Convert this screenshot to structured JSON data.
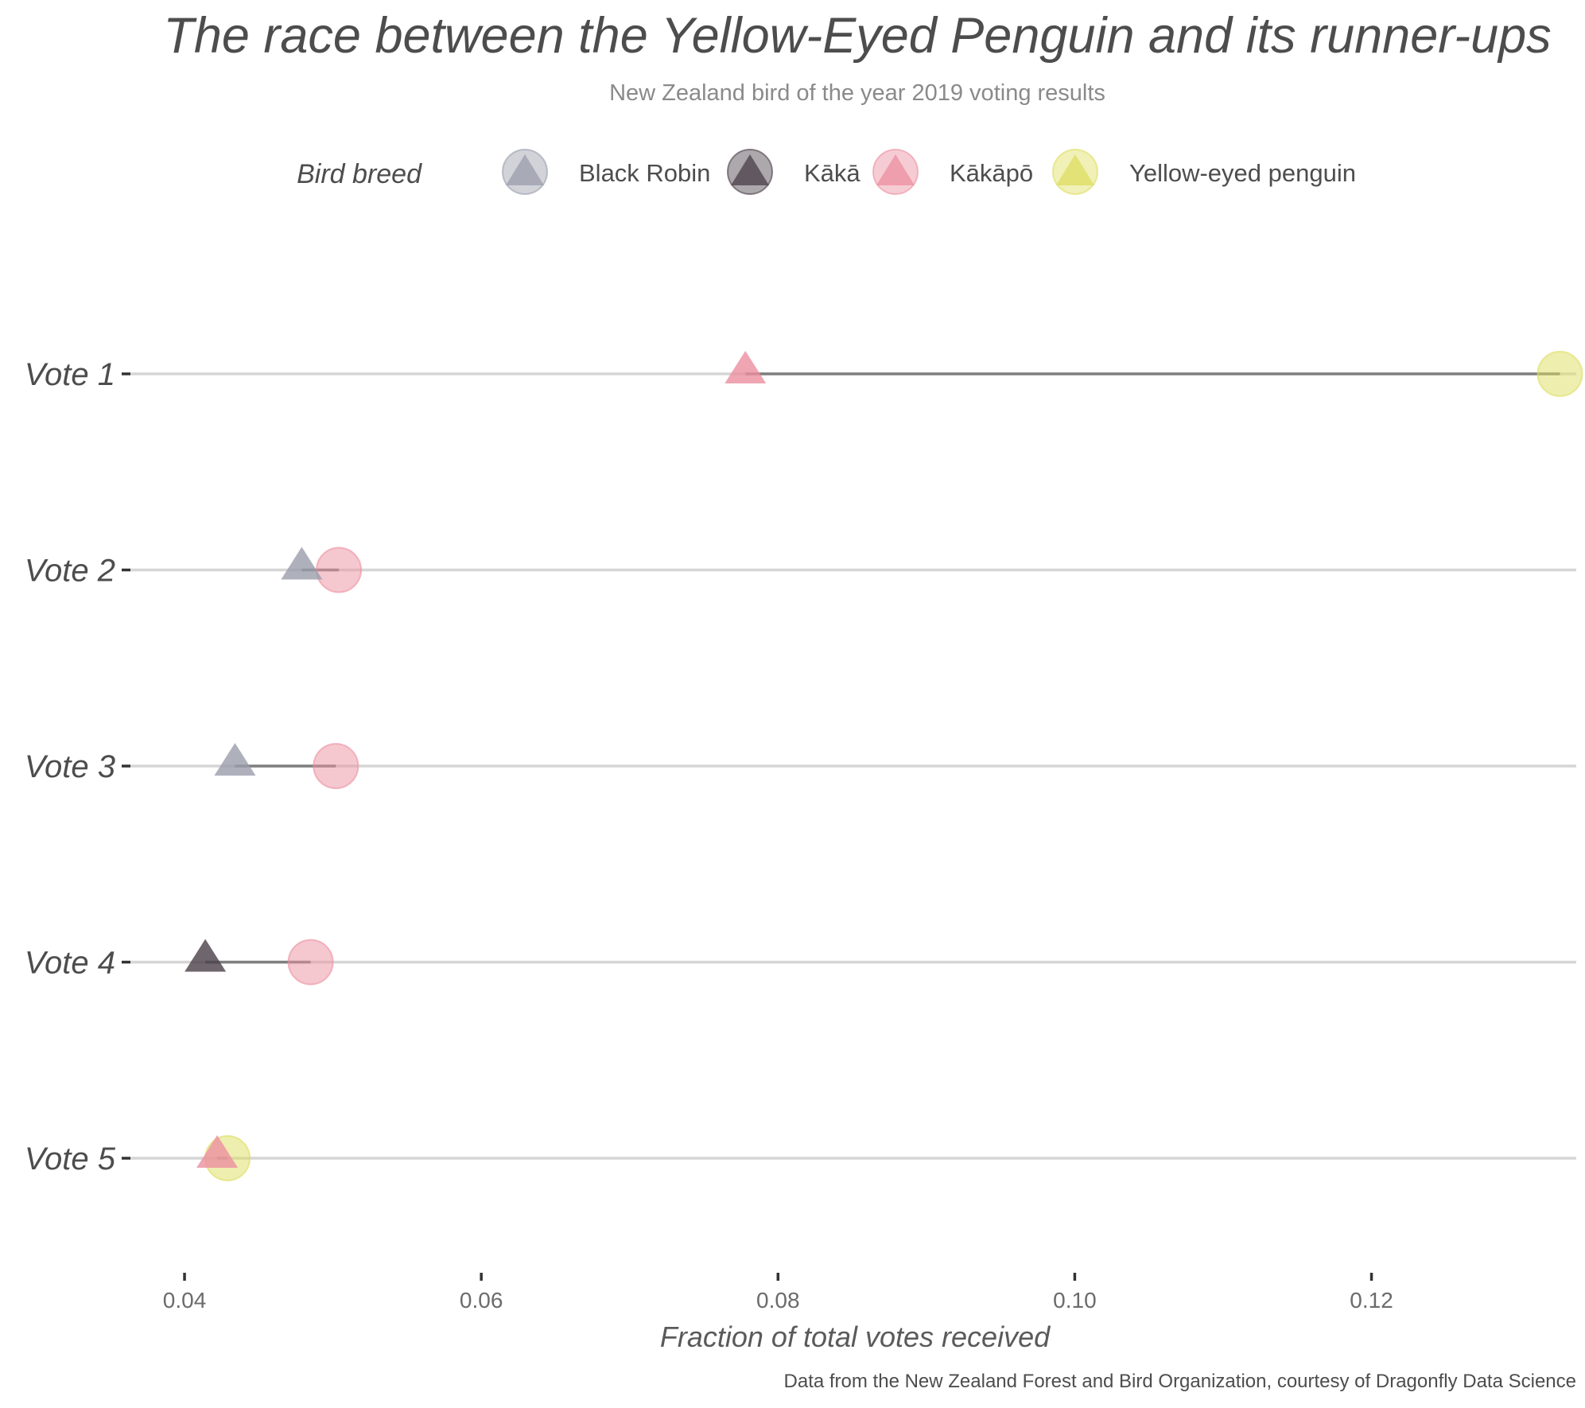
{
  "chart_data": {
    "type": "dumbbell",
    "title": "The race between the Yellow-Eyed Penguin and its runner-ups",
    "subtitle": "New Zealand bird of the year 2019 voting results",
    "xlabel": "Fraction of total votes received",
    "ylabel": "",
    "caption": "Data from the New Zealand Forest and Bird Organization, courtesy of Dragonfly Data Science",
    "xlim": [
      0.0363,
      0.1338
    ],
    "x_ticks": [
      0.04,
      0.06,
      0.08,
      0.1,
      0.12
    ],
    "x_tick_labels": [
      "0.04",
      "0.06",
      "0.08",
      "0.10",
      "0.12"
    ],
    "grid": "horizontal major lines only",
    "legend": {
      "title": "Bird breed",
      "position": "top",
      "entries": [
        {
          "name": "Black Robin",
          "color": "#9a9dab"
        },
        {
          "name": "Kākā",
          "color": "#4a3e48"
        },
        {
          "name": "Kākāpō",
          "color": "#ec8fa0"
        },
        {
          "name": "Yellow-eyed penguin",
          "color": "#dedd60"
        }
      ]
    },
    "categories": [
      "Vote 1",
      "Vote 2",
      "Vote 3",
      "Vote 4",
      "Vote 5"
    ],
    "rows": [
      {
        "vote": "Vote 1",
        "winner": "Yellow-eyed penguin",
        "winner_value": 0.1327,
        "runner_up": "Kākāpō",
        "runner_up_value": 0.0778
      },
      {
        "vote": "Vote 2",
        "winner": "Kākāpō",
        "winner_value": 0.0504,
        "runner_up": "Black Robin",
        "runner_up_value": 0.0479
      },
      {
        "vote": "Vote 3",
        "winner": "Kākāpō",
        "winner_value": 0.0502,
        "runner_up": "Black Robin",
        "runner_up_value": 0.0434
      },
      {
        "vote": "Vote 4",
        "winner": "Kākāpō",
        "winner_value": 0.0485,
        "runner_up": "Kākā",
        "runner_up_value": 0.0414
      },
      {
        "vote": "Vote 5",
        "winner": "Yellow-eyed penguin",
        "winner_value": 0.0429,
        "runner_up": "Kākāpō",
        "runner_up_value": 0.0422
      }
    ]
  }
}
